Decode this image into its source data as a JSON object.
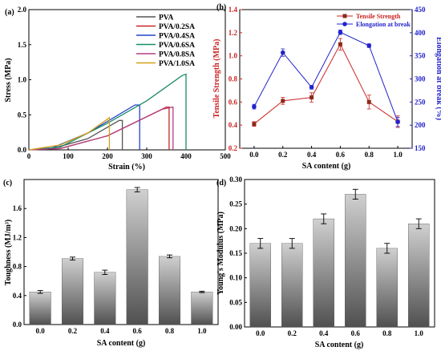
{
  "chart_data": [
    {
      "panel": "(a)",
      "type": "line",
      "title": "",
      "xlabel": "Strain (%)",
      "ylabel": "Stress (MPa)",
      "xlim": [
        0,
        500
      ],
      "ylim": [
        0,
        2.0
      ],
      "xticks": [
        "0",
        "100",
        "200",
        "300",
        "400",
        "500"
      ],
      "yticks": [
        "0.0",
        "0.5",
        "1.0",
        "1.5",
        "2.0"
      ],
      "legend_position": "top-right",
      "series": [
        {
          "name": "PVA",
          "color": "#555555",
          "x": [
            0,
            60,
            150,
            230,
            238,
            238
          ],
          "y": [
            0,
            0.02,
            0.16,
            0.42,
            0.42,
            0
          ]
        },
        {
          "name": "PVA/0.2SA",
          "color": "#cc2222",
          "x": [
            0,
            80,
            200,
            350,
            357,
            357
          ],
          "y": [
            0,
            0.02,
            0.2,
            0.61,
            0.61,
            0
          ]
        },
        {
          "name": "PVA/0.4SA",
          "color": "#2244cc",
          "x": [
            0,
            60,
            150,
            270,
            282,
            282
          ],
          "y": [
            0,
            0.03,
            0.24,
            0.64,
            0.64,
            0
          ]
        },
        {
          "name": "PVA/0.6SA",
          "color": "#1a8a6a",
          "x": [
            0,
            80,
            200,
            300,
            390,
            400,
            400
          ],
          "y": [
            0,
            0.04,
            0.38,
            0.7,
            1.06,
            1.08,
            0
          ]
        },
        {
          "name": "PVA/0.8SA",
          "color": "#b04080",
          "x": [
            0,
            80,
            200,
            340,
            367,
            367
          ],
          "y": [
            0,
            0.02,
            0.2,
            0.58,
            0.61,
            0
          ]
        },
        {
          "name": "PVA/1.0SA",
          "color": "#d4a017",
          "x": [
            0,
            80,
            150,
            195,
            205,
            205
          ],
          "y": [
            0,
            0.07,
            0.24,
            0.42,
            0.46,
            0
          ]
        }
      ]
    },
    {
      "panel": "(b)",
      "type": "line",
      "xlabel": "SA content (g)",
      "ylabel": "Tensile Strength (MPa)",
      "y2label": "Elongation at break (%)",
      "xlim": [
        -0.1,
        1.1
      ],
      "ylim": [
        0.2,
        1.4
      ],
      "y2lim": [
        150,
        450
      ],
      "xticks": [
        "0.0",
        "0.2",
        "0.4",
        "0.6",
        "0.8",
        "1.0"
      ],
      "yticks": [
        "0.2",
        "0.4",
        "0.6",
        "0.8",
        "1.0",
        "1.2",
        "1.4"
      ],
      "y2ticks": [
        "150",
        "200",
        "250",
        "300",
        "350",
        "400",
        "450"
      ],
      "legend_position": "top-right",
      "x": [
        0,
        0.2,
        0.4,
        0.6,
        0.8,
        1.0
      ],
      "series": [
        {
          "name": "Tensile Strength",
          "axis": "left",
          "color": "#cc2222",
          "marker": "square",
          "values": [
            0.41,
            0.61,
            0.64,
            1.1,
            0.6,
            0.43
          ],
          "errors": [
            0.02,
            0.03,
            0.04,
            0.05,
            0.06,
            0.05
          ]
        },
        {
          "name": "Elongation at break",
          "axis": "right",
          "color": "#2222cc",
          "marker": "circle",
          "values": [
            240,
            357,
            282,
            401,
            372,
            207
          ],
          "errors": [
            5,
            8,
            4,
            5,
            4,
            10
          ]
        }
      ]
    },
    {
      "panel": "(c)",
      "type": "bar",
      "xlabel": "SA content (g)",
      "ylabel": "Toughness (MJ/m³)",
      "categories": [
        "0.0",
        "0.2",
        "0.4",
        "0.6",
        "0.8",
        "1.0"
      ],
      "values": [
        0.45,
        0.91,
        0.72,
        1.86,
        0.94,
        0.45
      ],
      "errors": [
        0.02,
        0.02,
        0.03,
        0.03,
        0.02,
        0.01
      ],
      "ylim": [
        0,
        2.0
      ],
      "yticks": [
        "0.0",
        "0.4",
        "0.8",
        "1.2",
        "1.6"
      ],
      "grid": false
    },
    {
      "panel": "(d)",
      "type": "bar",
      "xlabel": "SA content (g)",
      "ylabel": "Young's Modulus (MPa)",
      "categories": [
        "0.0",
        "0.2",
        "0.4",
        "0.6",
        "0.8",
        "1.0"
      ],
      "values": [
        0.17,
        0.17,
        0.22,
        0.27,
        0.16,
        0.21
      ],
      "errors": [
        0.01,
        0.01,
        0.01,
        0.01,
        0.01,
        0.01
      ],
      "ylim": [
        0,
        0.3
      ],
      "yticks": [
        "0.00",
        "0.05",
        "0.10",
        "0.15",
        "0.20",
        "0.25",
        "0.30"
      ],
      "grid": false
    }
  ]
}
